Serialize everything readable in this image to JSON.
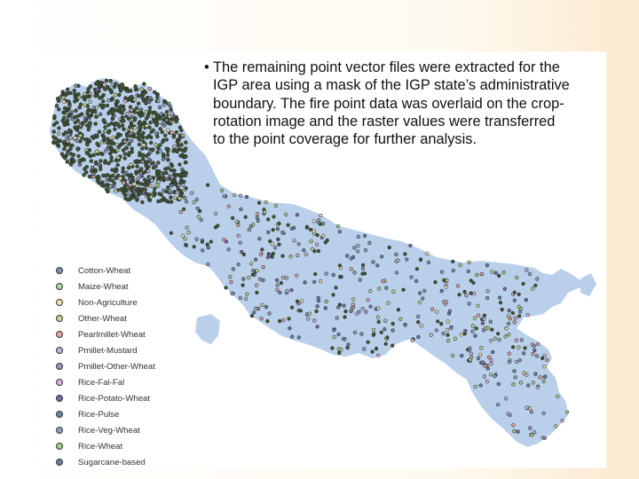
{
  "caption": {
    "bullet": "•",
    "lines": [
      "The remaining point vector files were extracted for the",
      "IGP area using a mask of the IGP state’s administrative",
      "boundary. The fire point data was overlaid on the crop-",
      "rotation image and the raster values were transferred",
      "to the point coverage for further analysis."
    ]
  },
  "legend": {
    "items": [
      {
        "label": "Cotton-Wheat",
        "color": "#7f93a6"
      },
      {
        "label": "Maize-Wheat",
        "color": "#b5d6a0"
      },
      {
        "label": "Non-Agriculture",
        "color": "#f0e5b0"
      },
      {
        "label": "Other-Wheat",
        "color": "#c3d98f"
      },
      {
        "label": "Pearlmillet-Wheat",
        "color": "#e6a3a3"
      },
      {
        "label": "Pmillet-Mustard",
        "color": "#b7b7d6"
      },
      {
        "label": "Pmillet-Other-Wheat",
        "color": "#9a9ac0"
      },
      {
        "label": "Rice-Fal-Fal",
        "color": "#d9b3d9"
      },
      {
        "label": "Rice-Potato-Wheat",
        "color": "#7a6aa8"
      },
      {
        "label": "Rice-Pulse",
        "color": "#6f85a3"
      },
      {
        "label": "Rice-Veg-Wheat",
        "color": "#8fa0c8"
      },
      {
        "label": "Rice-Wheat",
        "color": "#a8cf84"
      },
      {
        "label": "Sugarcane-based",
        "color": "#6d7fa8"
      }
    ]
  },
  "map": {
    "region_color": "#b9cfea",
    "dense_cluster_color": "#3e5530"
  }
}
